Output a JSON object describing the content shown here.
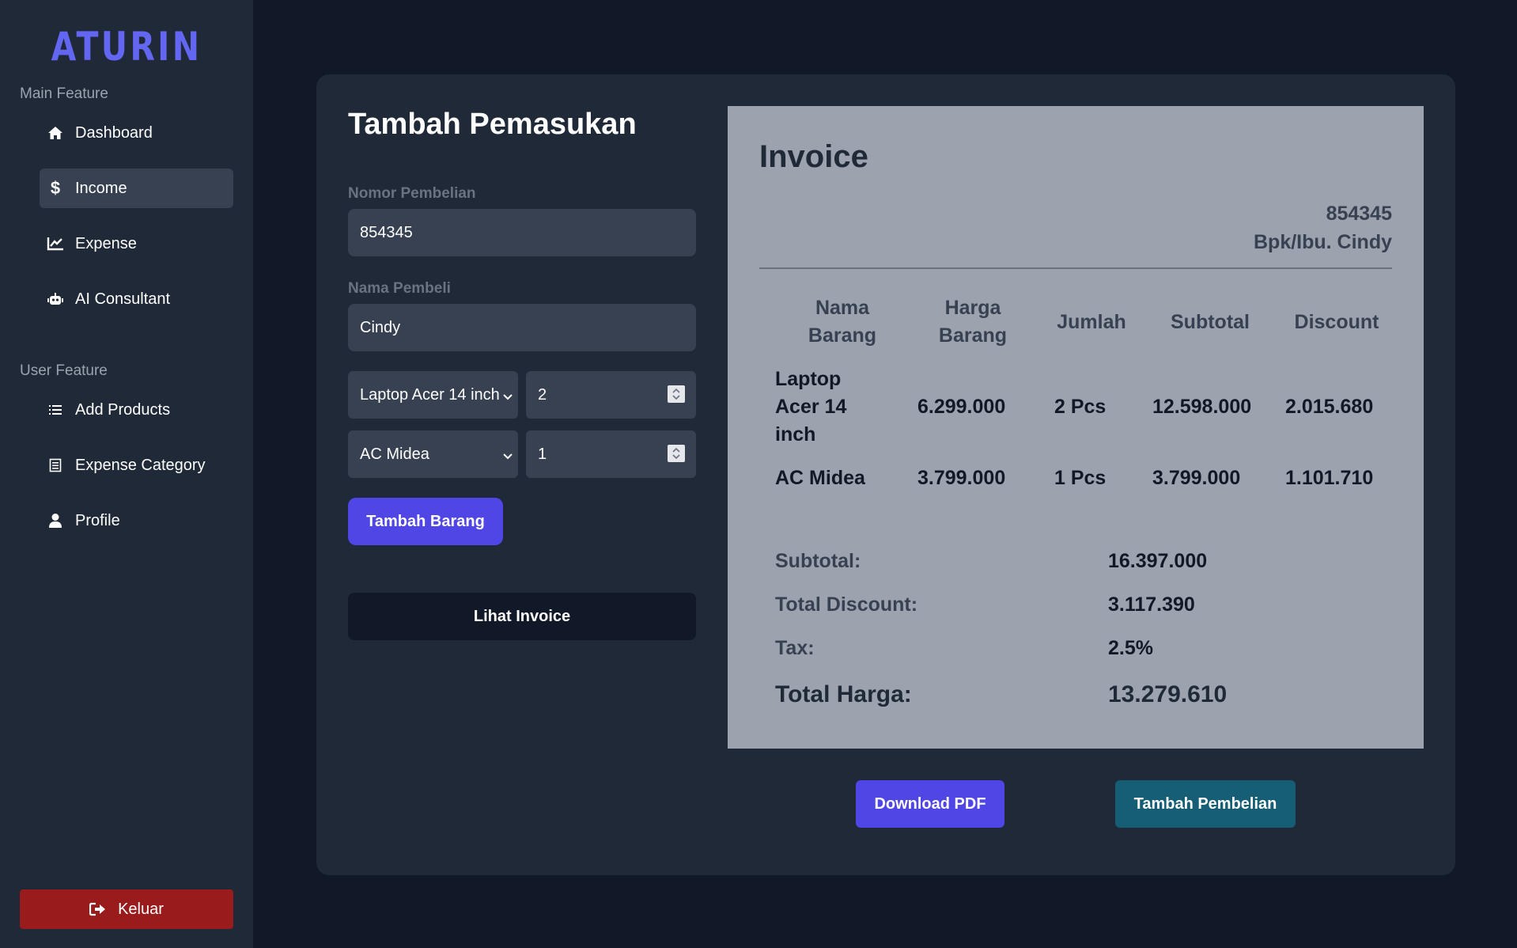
{
  "app": {
    "logo": "ATURIN"
  },
  "sidebar": {
    "main_label": "Main Feature",
    "user_label": "User Feature",
    "main_items": [
      {
        "label": "Dashboard",
        "icon": "home-icon"
      },
      {
        "label": "Income",
        "icon": "dollar-icon",
        "active": true
      },
      {
        "label": "Expense",
        "icon": "chart-line-icon"
      },
      {
        "label": "AI Consultant",
        "icon": "robot-icon"
      }
    ],
    "user_items": [
      {
        "label": "Add Products",
        "icon": "list-icon"
      },
      {
        "label": "Expense Category",
        "icon": "document-list-icon"
      },
      {
        "label": "Profile",
        "icon": "user-icon"
      }
    ],
    "logout_label": "Keluar"
  },
  "form": {
    "title": "Tambah Pemasukan",
    "purchase_number_label": "Nomor Pembelian",
    "purchase_number_value": "854345",
    "buyer_name_label": "Nama Pembeli",
    "buyer_name_value": "Cindy",
    "items": [
      {
        "product": "Laptop Acer 14 inch",
        "qty": "2"
      },
      {
        "product": "AC Midea",
        "qty": "1"
      }
    ],
    "add_item_label": "Tambah Barang",
    "view_invoice_label": "Lihat Invoice"
  },
  "invoice": {
    "title": "Invoice",
    "number": "854345",
    "customer": "Bpk/Ibu. Cindy",
    "headers": {
      "name": "Nama Barang",
      "price": "Harga Barang",
      "qty": "Jumlah",
      "subtotal": "Subtotal",
      "discount": "Discount"
    },
    "rows": [
      {
        "name": "Laptop Acer 14 inch",
        "price": "6.299.000",
        "qty": "2 Pcs",
        "subtotal": "12.598.000",
        "discount": "2.015.680"
      },
      {
        "name": "AC Midea",
        "price": "3.799.000",
        "qty": "1 Pcs",
        "subtotal": "3.799.000",
        "discount": "1.101.710"
      }
    ],
    "summary": {
      "subtotal_label": "Subtotal:",
      "subtotal_value": "16.397.000",
      "discount_label": "Total Discount:",
      "discount_value": "3.117.390",
      "tax_label": "Tax:",
      "tax_value": "2.5%",
      "total_label": "Total Harga:",
      "total_value": "13.279.610"
    }
  },
  "actions": {
    "download_pdf": "Download PDF",
    "add_purchase": "Tambah Pembelian"
  },
  "colors": {
    "accent": "#4f46e5",
    "logout": "#991b1b",
    "teal": "#155e75"
  }
}
